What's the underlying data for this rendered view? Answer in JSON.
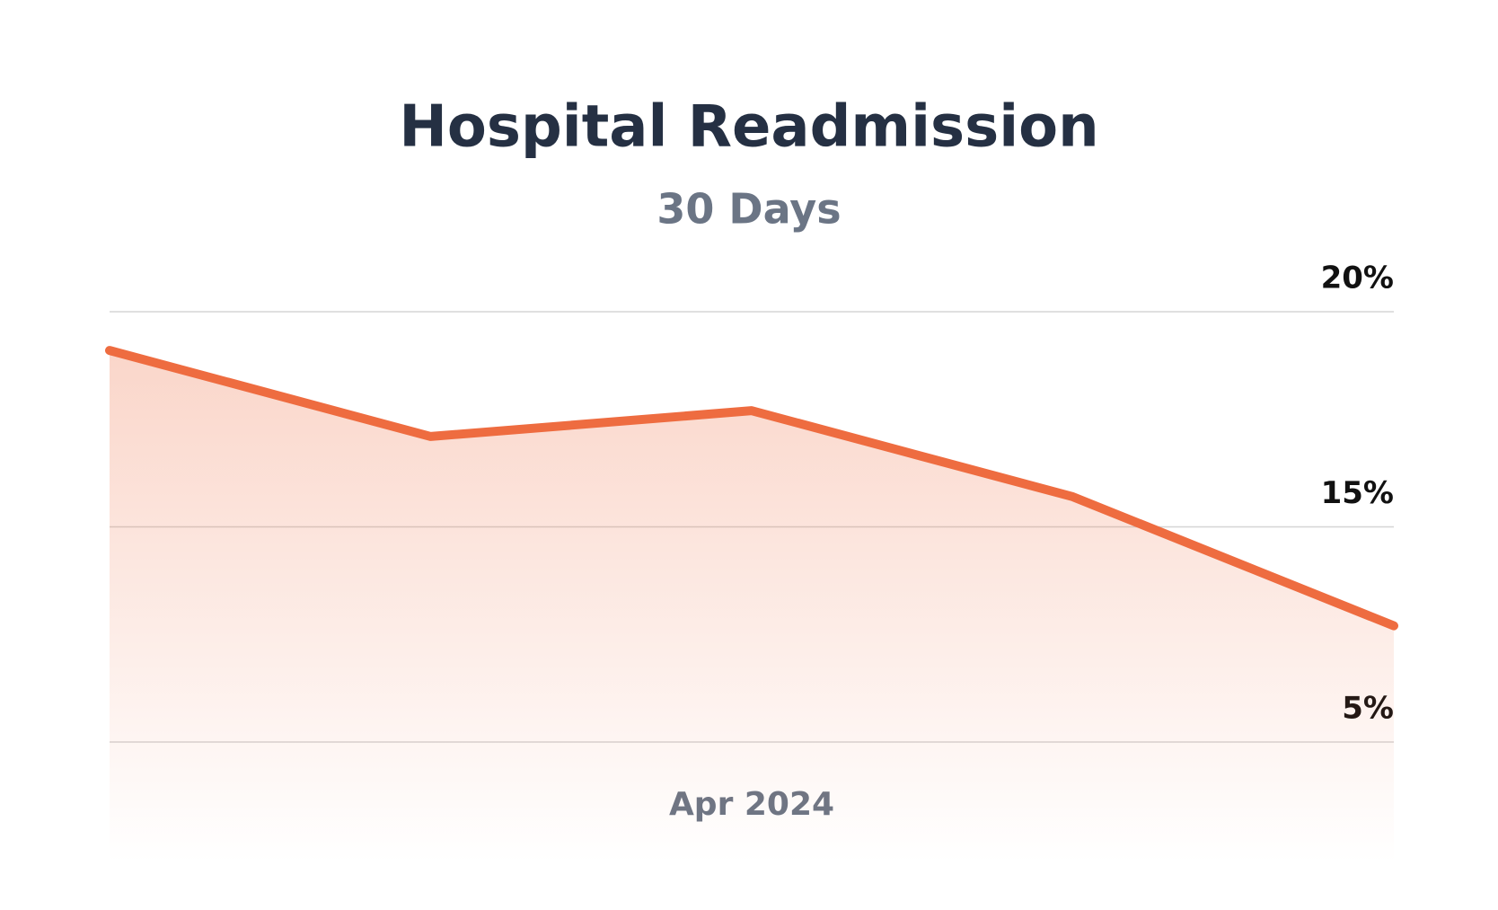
{
  "chart_data": {
    "type": "area",
    "title": "Hospital Readmission",
    "subtitle": "30 Days",
    "categories": [
      null,
      null,
      "Apr 2024",
      null,
      null
    ],
    "series": [
      {
        "color": "#ee6c40",
        "values": [
          19.1,
          17.1,
          17.7,
          15.7,
          10.4
        ]
      }
    ],
    "ylim": [
      5,
      20
    ],
    "yticks": [
      {
        "value": 20,
        "label": "20%"
      },
      {
        "value": 15,
        "label": "15%"
      },
      {
        "value": 5,
        "label": "5%"
      }
    ],
    "grid": true
  }
}
